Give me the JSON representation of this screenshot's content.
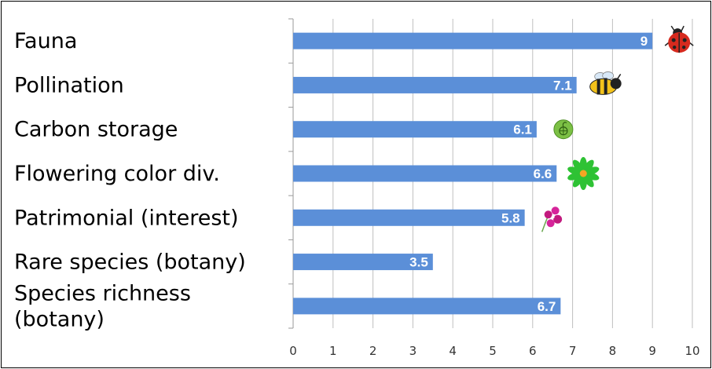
{
  "chart_data": {
    "type": "bar",
    "orientation": "horizontal",
    "categories": [
      [
        "Fauna"
      ],
      [
        "Pollination"
      ],
      [
        "Carbon storage"
      ],
      [
        "Flowering color div."
      ],
      [
        "Patrimonial (interest)"
      ],
      [
        "Rare species (botany)"
      ],
      [
        "Species richness",
        "(botany)"
      ]
    ],
    "values": [
      9,
      7.1,
      6.1,
      6.6,
      5.8,
      3.5,
      6.7
    ],
    "data_labels": [
      "9",
      "7.1",
      "6.1",
      "6.6",
      "5.8",
      "3.5",
      "6.7"
    ],
    "icons": [
      "ladybug-icon",
      "bee-icon",
      "globe-leaf-icon",
      "green-flower-icon",
      "orchid-icon",
      null,
      null
    ],
    "xlim": [
      0,
      10
    ],
    "xticks": [
      "0",
      "1",
      "2",
      "3",
      "4",
      "5",
      "6",
      "7",
      "8",
      "9",
      "10"
    ],
    "grid": true,
    "title": "",
    "xlabel": "",
    "ylabel": "",
    "colors": {
      "bar": "#5B8FD8",
      "grid": "#BFBFBF",
      "label": "#FFFFFF"
    }
  }
}
